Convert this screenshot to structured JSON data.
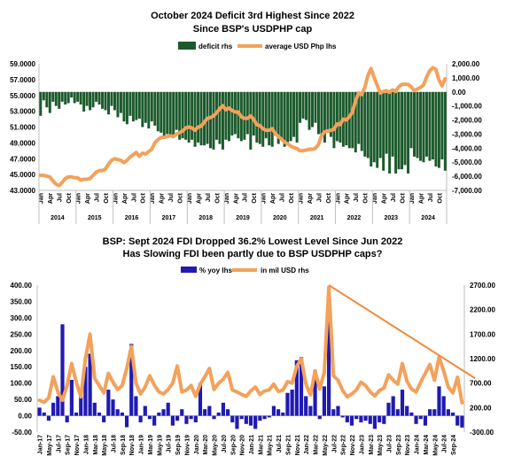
{
  "chart_data": [
    {
      "type": "bar",
      "title": "October 2024 Deficit 3rd Highest Since 2022",
      "subtitle": "Since BSP's USDPHP cap",
      "legend": {
        "placement": "top",
        "entries": [
          "deficit rhs",
          "average USD Php lhs"
        ]
      },
      "colors": {
        "deficit": "#1c5a2c",
        "usdphp": "#f3a15b"
      },
      "y_left": {
        "ylim": [
          43,
          59
        ],
        "ticks": [
          "43.0000",
          "45.0000",
          "47.0000",
          "49.0000",
          "51.0000",
          "53.0000",
          "55.0000",
          "57.0000",
          "59.0000"
        ]
      },
      "y_right": {
        "ylim": [
          -7000,
          2000
        ],
        "ticks": [
          "-7,000.00",
          "-6,000.00",
          "-5,000.00",
          "-4,000.00",
          "-3,000.00",
          "-2,000.00",
          "-1,000.00",
          "0.00",
          "1,000.00",
          "2,000.00"
        ]
      },
      "month_labels": [
        "Jan",
        "Apr",
        "Jul",
        "Oct"
      ],
      "years": [
        "2014",
        "2015",
        "2016",
        "2017",
        "2018",
        "2019",
        "2020",
        "2021",
        "2022",
        "2023",
        "2024"
      ],
      "period": {
        "start": "2014-01",
        "end": "2024-10"
      },
      "series": [
        {
          "name": "deficit rhs",
          "axis": "right",
          "kind": "bar",
          "values": [
            -1700,
            -600,
            -1100,
            -1500,
            -700,
            -1000,
            -1200,
            -700,
            -900,
            -800,
            -400,
            -800,
            -700,
            -900,
            -1400,
            -1000,
            -1300,
            -1100,
            -700,
            -900,
            -1200,
            -1300,
            -1600,
            -1000,
            -1300,
            -1800,
            -1500,
            -2100,
            -2300,
            -1700,
            -2100,
            -2000,
            -1900,
            -2500,
            -2200,
            -2600,
            -2100,
            -2400,
            -2800,
            -2900,
            -3300,
            -3000,
            -3100,
            -3200,
            -2700,
            -3400,
            -3300,
            -3400,
            -3600,
            -3400,
            -3900,
            -3600,
            -3800,
            -3800,
            -3700,
            -4000,
            -4100,
            -3400,
            -3700,
            -4100,
            -3400,
            -3500,
            -3100,
            -3000,
            -3300,
            -3500,
            -3400,
            -3000,
            -4100,
            -3100,
            -3600,
            -3700,
            -3900,
            -3300,
            -3800,
            -3900,
            -3100,
            -3700,
            -3400,
            -3900,
            -3700,
            -3500,
            -3200,
            -3600,
            -2200,
            -1900,
            -2000,
            -2700,
            -2500,
            -2200,
            -3000,
            -3200,
            -3600,
            -2900,
            -3200,
            -4000,
            -3500,
            -3600,
            -3900,
            -3800,
            -4000,
            -4000,
            -4300,
            -3700,
            -4200,
            -4600,
            -4700,
            -5300,
            -5000,
            -5400,
            -4700,
            -5600,
            -4400,
            -5800,
            -4600,
            -5800,
            -5500,
            -5500,
            -5200,
            -5800,
            -4000,
            -4600,
            -4700,
            -4900,
            -5000,
            -4600,
            -4900,
            -4800,
            -5300,
            -5400,
            -4800,
            -5600
          ]
        },
        {
          "name": "average USD Php lhs",
          "axis": "left",
          "kind": "line",
          "values": [
            44.9,
            44.9,
            44.8,
            44.7,
            44.2,
            43.8,
            43.6,
            44.0,
            44.5,
            44.7,
            44.7,
            44.6,
            44.6,
            44.3,
            44.4,
            44.4,
            44.5,
            44.9,
            45.3,
            45.5,
            45.5,
            45.7,
            46.3,
            46.8,
            47.0,
            46.9,
            46.8,
            46.5,
            46.8,
            47.2,
            47.5,
            47.8,
            47.3,
            47.7,
            47.6,
            47.9,
            48.2,
            49.0,
            49.4,
            49.7,
            49.7,
            49.8,
            49.9,
            49.8,
            50.1,
            50.3,
            50.5,
            50.9,
            51.0,
            50.9,
            50.6,
            51.0,
            51.1,
            51.6,
            52.1,
            52.2,
            52.4,
            52.8,
            53.3,
            53.7,
            53.2,
            53.4,
            53.1,
            52.9,
            52.9,
            52.3,
            52.1,
            52.1,
            52.4,
            52.0,
            51.3,
            51.2,
            50.8,
            50.6,
            50.6,
            50.8,
            50.2,
            49.8,
            49.5,
            49.1,
            48.9,
            48.6,
            48.4,
            48.3,
            48.0,
            48.0,
            48.1,
            48.2,
            48.2,
            48.3,
            48.8,
            49.9,
            50.4,
            50.5,
            50.6,
            50.7,
            51.4,
            51.3,
            52.0,
            51.9,
            52.3,
            52.9,
            54.3,
            55.3,
            55.1,
            56.0,
            57.5,
            58.4,
            57.3,
            56.3,
            55.3,
            55.5,
            55.6,
            55.4,
            55.7,
            55.5,
            56.1,
            56.4,
            56.4,
            56.4,
            56.1,
            55.6,
            55.8,
            56.0,
            56.3,
            57.3,
            58.1,
            58.5,
            58.3,
            57.0,
            56.2,
            57.1
          ]
        }
      ]
    },
    {
      "type": "bar",
      "title": "BSP: Sept 2024 FDI Dropped 36.2% Lowest Level Since Jun 2022",
      "subtitle": "Has Slowing FDI been partly due to BSP USDPHP caps?",
      "legend": {
        "placement": "top",
        "entries": [
          "% yoy lhs",
          "in mil USD rhs"
        ]
      },
      "colors": {
        "yoy": "#1f1ab3",
        "fdi": "#f3a15b",
        "trend": "#f08a3c"
      },
      "y_left": {
        "ylim": [
          -50,
          400
        ],
        "ticks": [
          "-50.00",
          "0.00",
          "50.00",
          "100.00",
          "150.00",
          "200.00",
          "250.00",
          "300.00",
          "350.00",
          "400.00"
        ]
      },
      "y_right": {
        "ylim": [
          -300,
          2700
        ],
        "ticks": [
          "-300.00",
          "200.00",
          "700.00",
          "1200.00",
          "1700.00",
          "2200.00",
          "2700.00"
        ]
      },
      "x_tick_labels": [
        "Jan-17",
        "May-17",
        "Sep-17",
        "Jan-18",
        "May-18",
        "Sep-18",
        "Jan-19",
        "May-19",
        "Sep-19",
        "Jan-20",
        "May-20",
        "Sep-20",
        "Jan-21",
        "May-21",
        "Sep-21",
        "Jan-22",
        "May-22",
        "Sep-22",
        "Jan-23",
        "May-23",
        "Sep-23",
        "Jan-24",
        "May-24",
        "Sep-24"
      ],
      "visible_x_tick_labels": [
        "Jan-17",
        "May-17",
        "Jul-17",
        "Sep-17",
        "Nov-17",
        "Jan-18",
        "Mar-18",
        "May-18",
        "Jul-18",
        "Sep-18",
        "Nov-18",
        "Jan-19",
        "Mar-19",
        "May-19",
        "Jul-19",
        "Sep-19",
        "Nov-19",
        "Jan-20",
        "Mar-20",
        "May-20",
        "Jul-20",
        "Sep-20",
        "Nov-20",
        "Jan-21",
        "Mar-21",
        "May-21",
        "Jul-21",
        "Sep-21",
        "Nov-21",
        "Jan-22",
        "Mar-22",
        "May-22",
        "Jul-22",
        "Sep-22",
        "Nov-22",
        "Jan-23",
        "Mar-23",
        "May-23",
        "Jul-23",
        "Sep-23",
        "Nov-23",
        "Jan-24",
        "Mar-24",
        "May-24",
        "Jul-24",
        "Sep-24"
      ],
      "period": {
        "start": "2017-01",
        "end": "2024-09"
      },
      "series": [
        {
          "name": "% yoy lhs",
          "axis": "left",
          "kind": "bar",
          "values": [
            25,
            10,
            -15,
            40,
            60,
            280,
            -20,
            110,
            10,
            60,
            150,
            190,
            40,
            10,
            -20,
            80,
            50,
            20,
            10,
            -35,
            220,
            60,
            -20,
            30,
            -10,
            -30,
            10,
            20,
            40,
            -30,
            -15,
            20,
            -25,
            -10,
            -20,
            100,
            20,
            30,
            -10,
            10,
            40,
            20,
            -20,
            -40,
            -10,
            -25,
            -30,
            -40,
            -15,
            -10,
            -5,
            30,
            20,
            10,
            70,
            80,
            170,
            180,
            60,
            30,
            140,
            -10,
            90,
            290,
            20,
            30,
            -5,
            -20,
            -30,
            -10,
            -20,
            -15,
            -25,
            -40,
            -20,
            -25,
            40,
            60,
            20,
            80,
            30,
            10,
            -25,
            -10,
            -30,
            20,
            20,
            90,
            60,
            20,
            10,
            -30,
            -36
          ]
        },
        {
          "name": "in mil USD rhs",
          "axis": "right",
          "kind": "line",
          "values": [
            350,
            310,
            400,
            830,
            520,
            350,
            650,
            1100,
            720,
            420,
            1200,
            1700,
            800,
            650,
            500,
            900,
            720,
            570,
            650,
            1000,
            1450,
            700,
            480,
            620,
            850,
            660,
            520,
            480,
            570,
            700,
            1050,
            520,
            560,
            650,
            430,
            680,
            830,
            1000,
            570,
            700,
            780,
            920,
            560,
            520,
            470,
            430,
            540,
            620,
            470,
            540,
            560,
            680,
            530,
            560,
            730,
            700,
            1040,
            1200,
            680,
            460,
            950,
            580,
            920,
            2660,
            850,
            760,
            550,
            420,
            480,
            560,
            720,
            650,
            520,
            440,
            550,
            600,
            870,
            760,
            680,
            1100,
            740,
            580,
            520,
            720,
            900,
            1080,
            760,
            1230,
            950,
            620,
            500,
            820,
            300
          ]
        },
        {
          "name": "trend",
          "axis": "right",
          "kind": "line",
          "values": [
            2700,
            800
          ]
        }
      ]
    }
  ]
}
